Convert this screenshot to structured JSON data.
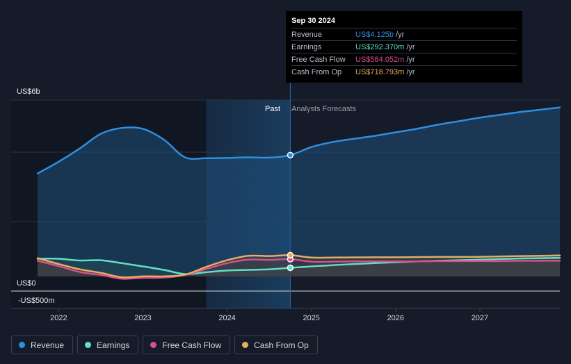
{
  "tooltip": {
    "date": "Sep 30 2024",
    "rows": [
      {
        "label": "Revenue",
        "value": "US$4.125b",
        "unit": "/yr",
        "color": "#2f8fdf"
      },
      {
        "label": "Earnings",
        "value": "US$292.370m",
        "unit": "/yr",
        "color": "#5fe0c8"
      },
      {
        "label": "Free Cash Flow",
        "value": "US$584.052m",
        "unit": "/yr",
        "color": "#d94f8c"
      },
      {
        "label": "Cash From Op",
        "value": "US$718.793m",
        "unit": "/yr",
        "color": "#e8ad5f"
      }
    ]
  },
  "region_labels": {
    "past": "Past",
    "forecast": "Analysts Forecasts"
  },
  "legend": [
    {
      "label": "Revenue",
      "color": "#2f8fdf"
    },
    {
      "label": "Earnings",
      "color": "#5fe0c8"
    },
    {
      "label": "Free Cash Flow",
      "color": "#d94f8c"
    },
    {
      "label": "Cash From Op",
      "color": "#e8ad5f"
    }
  ],
  "chart_data": {
    "type": "line",
    "title": "",
    "xlabel": "",
    "ylabel": "",
    "xlim": [
      2021.7,
      2027.95
    ],
    "ylim": [
      -0.5,
      6.0
    ],
    "y_tick_labels": [
      {
        "value": 6.0,
        "label": "US$6b"
      },
      {
        "value": 0.0,
        "label": "US$0"
      },
      {
        "value": -0.5,
        "label": "-US$500m"
      }
    ],
    "x_ticks": [
      2022,
      2023,
      2024,
      2025,
      2026,
      2027
    ],
    "x_tick_labels": [
      "2022",
      "2023",
      "2024",
      "2025",
      "2026",
      "2027"
    ],
    "divider_x": 2024.75,
    "highlight_range": [
      2023.75,
      2024.75
    ],
    "series": [
      {
        "name": "Revenue",
        "color": "#2f8fdf",
        "values": [
          [
            2021.75,
            3.5
          ],
          [
            2022.0,
            3.9
          ],
          [
            2022.25,
            4.35
          ],
          [
            2022.5,
            4.85
          ],
          [
            2022.75,
            5.05
          ],
          [
            2023.0,
            5.02
          ],
          [
            2023.25,
            4.65
          ],
          [
            2023.5,
            4.05
          ],
          [
            2023.75,
            4.02
          ],
          [
            2024.0,
            4.03
          ],
          [
            2024.25,
            4.05
          ],
          [
            2024.5,
            4.04
          ],
          [
            2024.75,
            4.125
          ],
          [
            2025.0,
            4.4
          ],
          [
            2025.25,
            4.57
          ],
          [
            2025.5,
            4.68
          ],
          [
            2025.75,
            4.78
          ],
          [
            2026.0,
            4.9
          ],
          [
            2026.25,
            5.02
          ],
          [
            2026.5,
            5.16
          ],
          [
            2026.75,
            5.28
          ],
          [
            2027.0,
            5.4
          ],
          [
            2027.25,
            5.5
          ],
          [
            2027.5,
            5.6
          ],
          [
            2027.75,
            5.68
          ],
          [
            2027.95,
            5.75
          ]
        ]
      },
      {
        "name": "Earnings",
        "color": "#5fe0c8",
        "values": [
          [
            2021.75,
            0.6
          ],
          [
            2022.0,
            0.6
          ],
          [
            2022.25,
            0.54
          ],
          [
            2022.5,
            0.55
          ],
          [
            2022.75,
            0.45
          ],
          [
            2023.0,
            0.34
          ],
          [
            2023.25,
            0.22
          ],
          [
            2023.5,
            0.08
          ],
          [
            2023.75,
            0.14
          ],
          [
            2024.0,
            0.2
          ],
          [
            2024.25,
            0.22
          ],
          [
            2024.5,
            0.24
          ],
          [
            2024.75,
            0.29237
          ],
          [
            2025.0,
            0.34
          ],
          [
            2025.25,
            0.38
          ],
          [
            2025.5,
            0.42
          ],
          [
            2025.75,
            0.45
          ],
          [
            2026.0,
            0.48
          ],
          [
            2026.25,
            0.51
          ],
          [
            2026.5,
            0.53
          ],
          [
            2026.75,
            0.55
          ],
          [
            2027.0,
            0.57
          ],
          [
            2027.25,
            0.59
          ],
          [
            2027.5,
            0.61
          ],
          [
            2027.75,
            0.62
          ],
          [
            2027.95,
            0.63
          ]
        ]
      },
      {
        "name": "Free Cash Flow",
        "color": "#d94f8c",
        "values": [
          [
            2021.75,
            0.53
          ],
          [
            2022.0,
            0.35
          ],
          [
            2022.25,
            0.15
          ],
          [
            2022.5,
            0.05
          ],
          [
            2022.75,
            -0.08
          ],
          [
            2023.0,
            -0.05
          ],
          [
            2023.25,
            -0.04
          ],
          [
            2023.5,
            0.05
          ],
          [
            2023.75,
            0.25
          ],
          [
            2024.0,
            0.45
          ],
          [
            2024.25,
            0.57
          ],
          [
            2024.5,
            0.56
          ],
          [
            2024.75,
            0.584052
          ],
          [
            2025.0,
            0.5
          ],
          [
            2025.25,
            0.5
          ],
          [
            2025.5,
            0.51
          ],
          [
            2025.75,
            0.51
          ],
          [
            2026.0,
            0.51
          ],
          [
            2026.25,
            0.51
          ],
          [
            2026.5,
            0.52
          ],
          [
            2026.75,
            0.52
          ],
          [
            2027.0,
            0.52
          ],
          [
            2027.25,
            0.52
          ],
          [
            2027.5,
            0.53
          ],
          [
            2027.75,
            0.53
          ],
          [
            2027.95,
            0.53
          ]
        ]
      },
      {
        "name": "Cash From Op",
        "color": "#e8ad5f",
        "values": [
          [
            2021.75,
            0.62
          ],
          [
            2022.0,
            0.42
          ],
          [
            2022.25,
            0.24
          ],
          [
            2022.5,
            0.12
          ],
          [
            2022.75,
            -0.03
          ],
          [
            2023.0,
            0.0
          ],
          [
            2023.25,
            0.0
          ],
          [
            2023.5,
            0.06
          ],
          [
            2023.75,
            0.32
          ],
          [
            2024.0,
            0.55
          ],
          [
            2024.25,
            0.7
          ],
          [
            2024.5,
            0.69
          ],
          [
            2024.75,
            0.718793
          ],
          [
            2025.0,
            0.64
          ],
          [
            2025.25,
            0.64
          ],
          [
            2025.5,
            0.645
          ],
          [
            2025.75,
            0.65
          ],
          [
            2026.0,
            0.65
          ],
          [
            2026.25,
            0.655
          ],
          [
            2026.5,
            0.66
          ],
          [
            2026.75,
            0.66
          ],
          [
            2027.0,
            0.665
          ],
          [
            2027.25,
            0.68
          ],
          [
            2027.5,
            0.69
          ],
          [
            2027.75,
            0.7
          ],
          [
            2027.95,
            0.71
          ]
        ]
      }
    ]
  }
}
